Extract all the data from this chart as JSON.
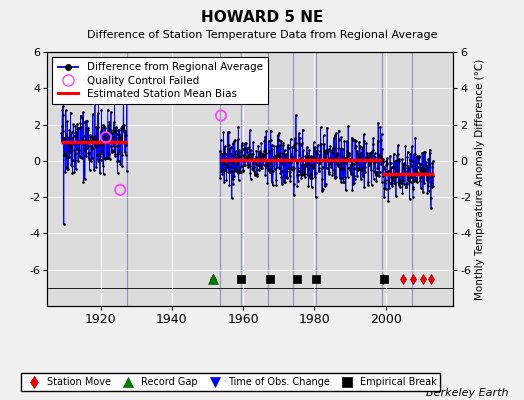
{
  "title": "HOWARD 5 NE",
  "subtitle": "Difference of Station Temperature Data from Regional Average",
  "ylabel": "Monthly Temperature Anomaly Difference (°C)",
  "background_color": "#f0f0f0",
  "plot_bg_color": "#dcdcdc",
  "ylim_main": [
    -7.0,
    6.0
  ],
  "ylim_full": [
    -8.0,
    6.0
  ],
  "xlim": [
    1905,
    2019
  ],
  "xticks": [
    1920,
    1940,
    1960,
    1980,
    2000
  ],
  "yticks": [
    -6,
    -4,
    -2,
    0,
    2,
    4,
    6
  ],
  "seg1_start": 1909.0,
  "seg1_end": 1927.5,
  "seg1_bias": 1.05,
  "seg2_start": 1953.5,
  "seg2_end": 1999.0,
  "seg2_bias": 0.05,
  "seg3_start": 1999.0,
  "seg3_end": 2013.5,
  "seg3_bias": -0.75,
  "vertical_lines": [
    1927.5,
    1953.5,
    1959.5,
    1967.0,
    1974.0,
    1980.5,
    1999.0,
    2007.5
  ],
  "vline_color": "#8888cc",
  "station_moves": [
    1951.5,
    1999.2,
    2004.8,
    2007.8,
    2010.5,
    2012.8
  ],
  "record_gaps": [
    1951.5
  ],
  "time_obs_changes": [],
  "empirical_breaks": [
    1959.5,
    1967.5,
    1975.0,
    1980.5,
    1999.5
  ],
  "qc_fail_times": [
    1921.5,
    1925.5,
    1953.8
  ],
  "qc_fail_values": [
    1.3,
    -1.6,
    2.5
  ],
  "event_strip_y": -6.5,
  "berkeley_earth_text": "Berkeley Earth",
  "grid_color": "#ffffff",
  "seed": 42
}
